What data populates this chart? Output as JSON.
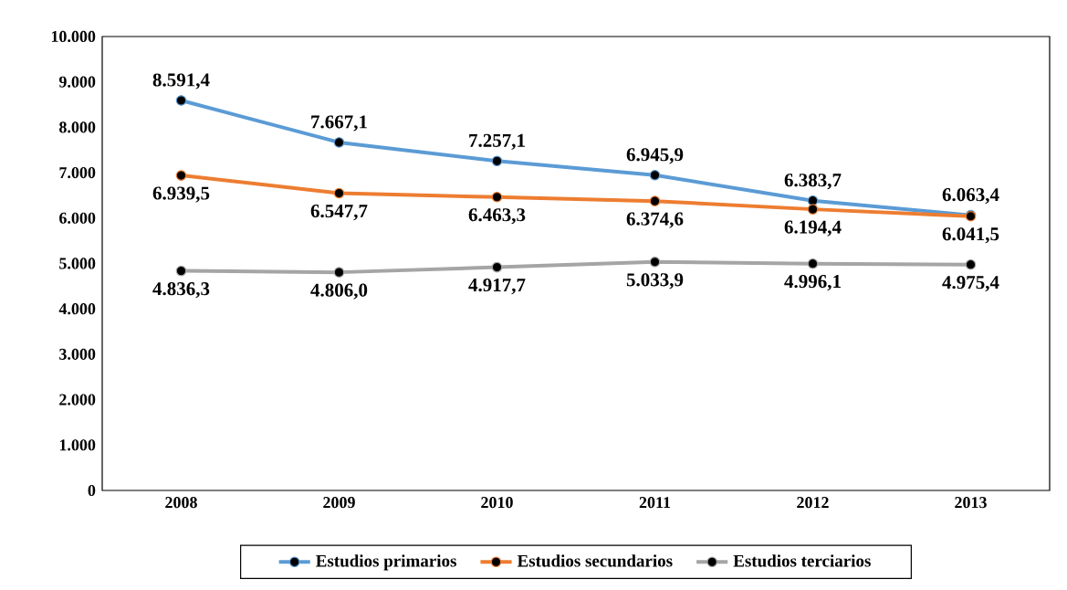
{
  "chart_data": {
    "type": "line",
    "categories": [
      "2008",
      "2009",
      "2010",
      "2011",
      "2012",
      "2013"
    ],
    "series": [
      {
        "name": "Estudios primarios",
        "color": "#5b9bd5",
        "values": [
          8591.4,
          7667.1,
          7257.1,
          6945.9,
          6383.7,
          6063.4
        ],
        "value_labels": [
          "8.591,4",
          "7.667,1",
          "7.257,1",
          "6.945,9",
          "6.383,7",
          "6.063,4"
        ]
      },
      {
        "name": "Estudios secundarios",
        "color": "#ed7d31",
        "values": [
          6939.5,
          6547.7,
          6463.3,
          6374.6,
          6194.4,
          6041.5
        ],
        "value_labels": [
          "6.939,5",
          "6.547,7",
          "6.463,3",
          "6.374,6",
          "6.194,4",
          "6.041,5"
        ]
      },
      {
        "name": "Estudios terciarios",
        "color": "#a5a5a5",
        "values": [
          4836.3,
          4806.0,
          4917.7,
          5033.9,
          4996.1,
          4975.4
        ],
        "value_labels": [
          "4.836,3",
          "4.806,0",
          "4.917,7",
          "5.033,9",
          "4.996,1",
          "4.975,4"
        ]
      }
    ],
    "ylim": [
      0,
      10000
    ],
    "yticks": [
      {
        "value": 0,
        "label": "0"
      },
      {
        "value": 1000,
        "label": "1.000"
      },
      {
        "value": 2000,
        "label": "2.000"
      },
      {
        "value": 3000,
        "label": "3.000"
      },
      {
        "value": 4000,
        "label": "4.000"
      },
      {
        "value": 5000,
        "label": "5.000"
      },
      {
        "value": 6000,
        "label": "6.000"
      },
      {
        "value": 7000,
        "label": "7.000"
      },
      {
        "value": 8000,
        "label": "8.000"
      },
      {
        "value": 9000,
        "label": "9.000"
      },
      {
        "value": 10000,
        "label": "10.000"
      }
    ],
    "marker": "circle",
    "line_style": "solid",
    "legend": "bottom"
  }
}
